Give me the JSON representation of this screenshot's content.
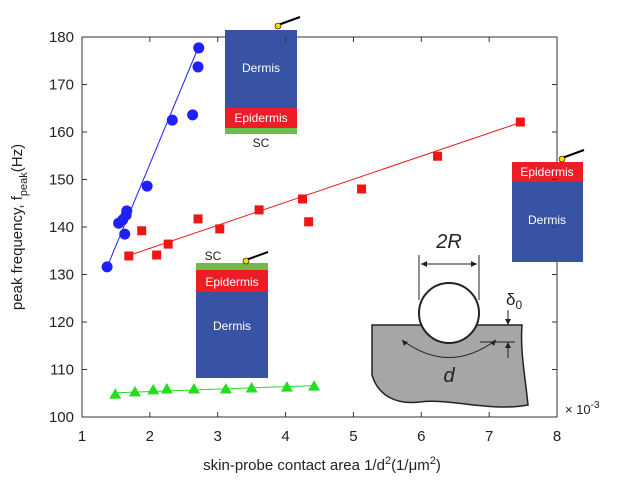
{
  "chart_data": {
    "type": "scatter",
    "xlabel_parts": [
      "skin-probe contact area 1/d",
      "2",
      "(1/μm",
      "2",
      ")"
    ],
    "ylabel_parts": [
      "peak frequency, f",
      "peak",
      "(Hz)"
    ],
    "x_multiplier": [
      "× 10",
      "-3"
    ],
    "xlim": [
      1,
      8
    ],
    "ylim": [
      100,
      180
    ],
    "xticks": [
      1,
      2,
      3,
      4,
      5,
      6,
      7,
      8
    ],
    "yticks": [
      100,
      110,
      120,
      130,
      140,
      150,
      160,
      170,
      180
    ],
    "series": [
      {
        "color": "#1f1fff",
        "marker": "circle",
        "x": [
          1.37,
          1.54,
          1.6,
          1.63,
          1.65,
          1.66,
          1.96,
          2.33,
          2.63,
          2.71,
          2.72
        ],
        "values": [
          131.6,
          140.8,
          141.5,
          138.5,
          142.5,
          143.4,
          148.6,
          162.5,
          163.6,
          173.7,
          177.7
        ],
        "fit_x": [
          1.37,
          2.72
        ],
        "fit_y": [
          131.6,
          178
        ]
      },
      {
        "color": "#ee1515",
        "marker": "square",
        "x": [
          1.69,
          1.88,
          2.1,
          2.27,
          2.71,
          3.03,
          3.61,
          4.25,
          4.34,
          5.12,
          6.24,
          7.46
        ],
        "values": [
          133.9,
          139.2,
          134.1,
          136.4,
          141.7,
          139.6,
          143.6,
          145.9,
          141.1,
          148.0,
          154.9,
          162.1
        ],
        "fit_x": [
          1.69,
          7.46
        ],
        "fit_y": [
          134,
          162
        ]
      },
      {
        "color": "#22dd22",
        "marker": "triangle",
        "x": [
          1.49,
          1.78,
          2.05,
          2.25,
          2.65,
          3.12,
          3.5,
          4.02,
          4.42
        ],
        "values": [
          104.8,
          105.3,
          105.7,
          105.9,
          105.9,
          105.9,
          106.1,
          106.3,
          106.5
        ],
        "fit_x": [
          1.49,
          4.42
        ],
        "fit_y": [
          105.1,
          106.6
        ]
      }
    ]
  },
  "annotations": {
    "top_dermis": "Dermis",
    "top_epidermis": "Epidermis",
    "top_sc": "SC",
    "mid_sc": "SC",
    "mid_epidermis": "Epidermis",
    "mid_dermis": "Dermis",
    "right_epidermis": "Epidermis",
    "right_dermis": "Dermis",
    "radius": "2R",
    "delta": "δ",
    "delta_sub": "0",
    "diameter": "d"
  }
}
